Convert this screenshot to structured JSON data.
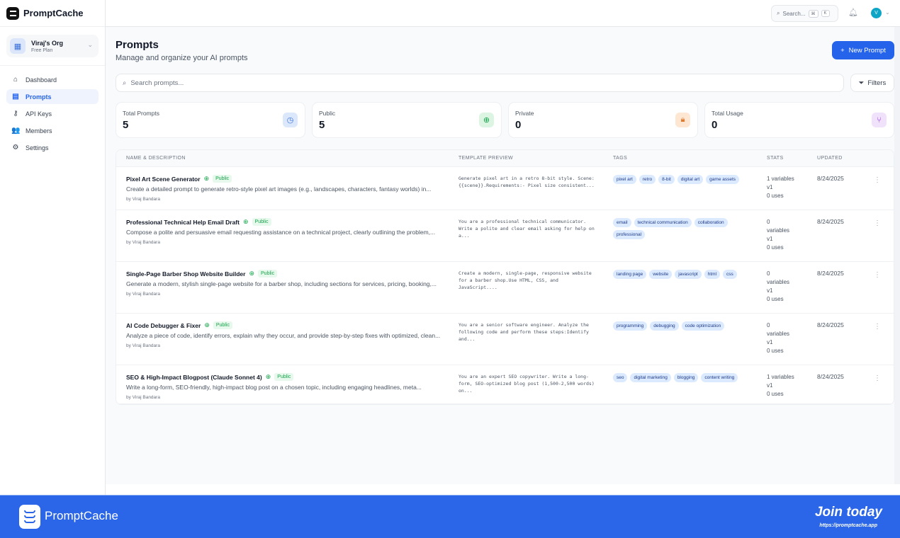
{
  "app": {
    "name": "PromptCache"
  },
  "org": {
    "name": "Viraj's Org",
    "plan": "Free Plan"
  },
  "sidebar": {
    "items": [
      {
        "label": "Dashboard",
        "icon": "home-icon",
        "glyph": "⌂",
        "active": false
      },
      {
        "label": "Prompts",
        "icon": "file-icon",
        "glyph": "▤",
        "active": true
      },
      {
        "label": "API Keys",
        "icon": "key-icon",
        "glyph": "⚷",
        "active": false
      },
      {
        "label": "Members",
        "icon": "users-icon",
        "glyph": "👥",
        "active": false
      },
      {
        "label": "Settings",
        "icon": "gear-icon",
        "glyph": "⚙",
        "active": false
      }
    ]
  },
  "topbar": {
    "search_placeholder": "Search...",
    "kbd1": "⌘",
    "kbd2": "K",
    "avatar_initial": "V"
  },
  "page": {
    "title": "Prompts",
    "subtitle": "Manage and organize your AI prompts",
    "new_button": "New Prompt",
    "search_placeholder": "Search prompts...",
    "filters": "Filters"
  },
  "stats": [
    {
      "label": "Total Prompts",
      "value": "5",
      "icon": "clock-icon",
      "glyph": "◷",
      "bg": "#dbe7fb",
      "color": "#3b6fd8"
    },
    {
      "label": "Public",
      "value": "5",
      "icon": "globe-icon",
      "glyph": "⊕",
      "bg": "#dcf5e3",
      "color": "#16a34a"
    },
    {
      "label": "Private",
      "value": "0",
      "icon": "lock-icon",
      "glyph": "🔒︎",
      "bg": "#fde6d2",
      "color": "#e07a2e"
    },
    {
      "label": "Total Usage",
      "value": "0",
      "icon": "git-branch-icon",
      "glyph": "⑂",
      "bg": "#f1e2fb",
      "color": "#9333ea"
    }
  ],
  "table": {
    "headers": [
      "NAME & DESCRIPTION",
      "TEMPLATE PREVIEW",
      "TAGS",
      "STATS",
      "UPDATED"
    ],
    "rows": [
      {
        "name": "Pixel Art Scene Generator",
        "visibility": "Public",
        "description": "Create a detailed prompt to generate retro-style pixel art images (e.g., landscapes, characters, fantasy worlds) in...",
        "author": "by Viraj Bandara",
        "template": "Generate pixel art in a retro 8-bit style. Scene: {{scene}}.Requirements:- Pixel size consistent...",
        "tags": [
          "pixel art",
          "retro",
          "8-bit",
          "digital art",
          "game assets"
        ],
        "stats": [
          "1 variables",
          "v1",
          "0 uses"
        ],
        "updated": "8/24/2025"
      },
      {
        "name": "Professional Technical Help Email Draft",
        "visibility": "Public",
        "description": "Compose a polite and persuasive email requesting assistance on a technical project, clearly outlining the problem,...",
        "author": "by Viraj Bandara",
        "template": "You are a professional technical communicator. Write a polite and clear email asking for help on a...",
        "tags": [
          "email",
          "technical communication",
          "collaboration",
          "professional"
        ],
        "stats": [
          "0",
          "variables",
          "v1",
          "0 uses"
        ],
        "updated": "8/24/2025"
      },
      {
        "name": "Single-Page Barber Shop Website Builder",
        "visibility": "Public",
        "description": "Generate a modern, stylish single-page website for a barber shop, including sections for services, pricing, booking,...",
        "author": "by Viraj Bandara",
        "template": "Create a modern, single-page, responsive website for a barber shop.Use HTML, CSS, and JavaScript....",
        "tags": [
          "landing page",
          "website",
          "javascript",
          "html",
          "css"
        ],
        "stats": [
          "0",
          "variables",
          "v1",
          "0 uses"
        ],
        "updated": "8/24/2025"
      },
      {
        "name": "AI Code Debugger & Fixer",
        "visibility": "Public",
        "description": "Analyze a piece of code, identify errors, explain why they occur, and provide step-by-step fixes with optimized, clean...",
        "author": "by Viraj Bandara",
        "template": "You are a senior software engineer. Analyze the following code and perform these steps:Identify and...",
        "tags": [
          "programming",
          "debugging",
          "code optimization"
        ],
        "stats": [
          "0",
          "variables",
          "v1",
          "0 uses"
        ],
        "updated": "8/24/2025"
      },
      {
        "name": "SEO & High-Impact Blogpost (Claude Sonnet 4)",
        "visibility": "Public",
        "description": "Write a long-form, SEO-friendly, high-impact blog post on a chosen topic, including engaging headlines, meta...",
        "author": "by Viraj Bandara",
        "template": "You are an expert SEO copywriter. Write a long-form, SEO-optimized blog post (1,500-2,500 words) on...",
        "tags": [
          "seo",
          "digital marketing",
          "blogging",
          "content writing"
        ],
        "stats": [
          "1 variables",
          "v1",
          "0 uses"
        ],
        "updated": "8/24/2025"
      }
    ]
  },
  "footer": {
    "brand": "PromptCache",
    "cta": "Join today",
    "url": "https://promptcache.app",
    "color": "#2b66e8"
  }
}
